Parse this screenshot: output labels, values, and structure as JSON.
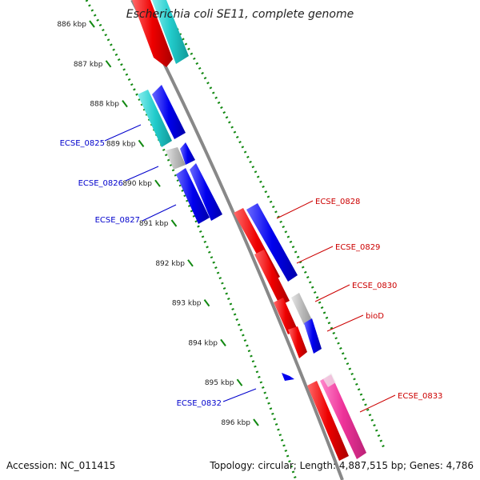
{
  "title": "Escherichia coli SE11, complete genome",
  "accession": "Accession: NC_011415",
  "summary": "Topology: circular; Length: 4,887,515 bp; Genes: 4,786",
  "ticks": [
    "886 kbp",
    "887 kbp",
    "888 kbp",
    "889 kbp",
    "890 kbp",
    "891 kbp",
    "892 kbp",
    "893 kbp",
    "894 kbp",
    "895 kbp",
    "896 kbp"
  ],
  "genes_left": [
    "ECSE_0825",
    "ECSE_0826",
    "ECSE_0827",
    "ECSE_0832"
  ],
  "genes_right": [
    "ECSE_0828",
    "ECSE_0829",
    "ECSE_0830",
    "bioD",
    "ECSE_0833"
  ],
  "colors": {
    "forward_cds": "#0000ee",
    "reverse_cds": "#ee0000",
    "forward_label": "#0000cc",
    "reverse_label": "#cc0000",
    "cyan_feature": "#22cccc",
    "pink_feature": "#ee3399",
    "unknown_feature": "#bbbbbb",
    "tick_color": "#118811",
    "backbone": "#888888"
  }
}
